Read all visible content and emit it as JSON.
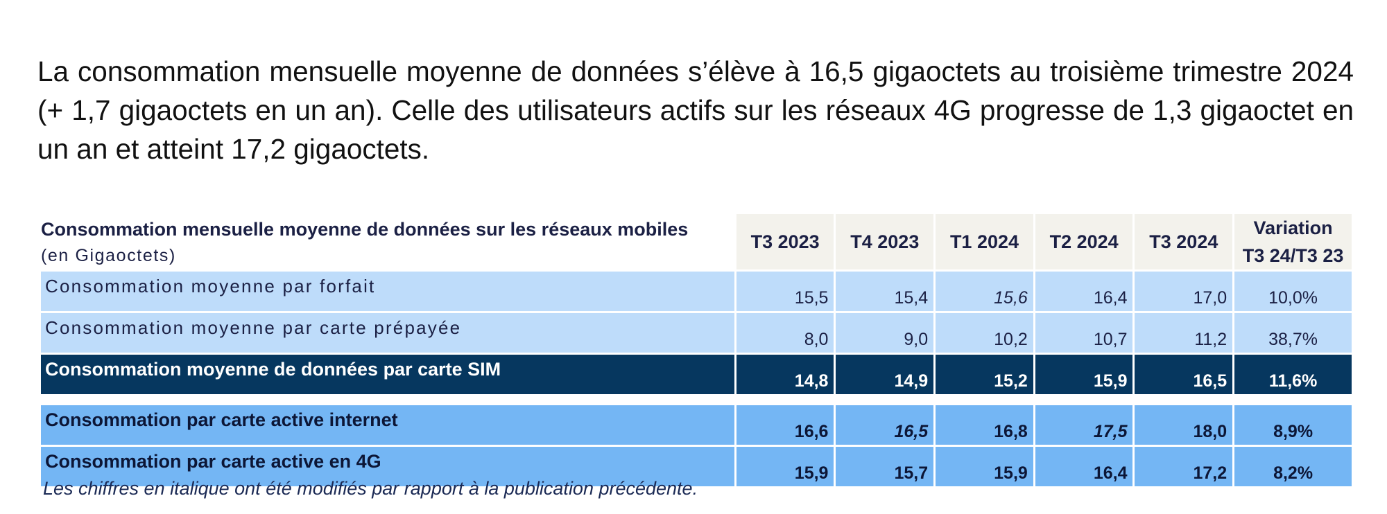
{
  "intro": {
    "paragraph": "La consommation mensuelle moyenne de données s’élève à 16,5 gigaoctets au troisième trimestre 2024 (+ 1,7 gigaoctets en un an). Celle des utilisateurs actifs sur les réseaux 4G progresse de 1,3 gigaoctet en un an et atteint 17,2 gigaoctets."
  },
  "table": {
    "title": "Consommation mensuelle moyenne de données sur les réseaux mobiles",
    "unit": "(en Gigaoctets)",
    "columns": [
      "T3 2023",
      "T4 2023",
      "T1 2024",
      "T2 2024",
      "T3 2024"
    ],
    "variation_header": {
      "line1": "Variation",
      "line2": "T3 24/T3 23"
    },
    "rows": [
      {
        "label": "Consommation moyenne par forfait",
        "values": [
          "15,5",
          "15,4",
          "15,6",
          "16,4",
          "17,0"
        ],
        "variation": "10,0%"
      },
      {
        "label": "Consommation moyenne par carte prépayée",
        "values": [
          "8,0",
          "9,0",
          "10,2",
          "10,7",
          "11,2"
        ],
        "variation": "38,7%"
      },
      {
        "label": "Consommation moyenne de données par carte SIM",
        "values": [
          "14,8",
          "14,9",
          "15,2",
          "15,9",
          "16,5"
        ],
        "variation": "11,6%"
      },
      {
        "label": "Consommation par carte active internet",
        "values": [
          "16,6",
          "16,5",
          "16,8",
          "17,5",
          "18,0"
        ],
        "variation": "8,9%"
      },
      {
        "label": "Consommation par carte active en 4G",
        "values": [
          "15,9",
          "15,7",
          "15,9",
          "16,4",
          "17,2"
        ],
        "variation": "8,2%"
      }
    ]
  },
  "footnote": "Les chiffres en italique ont été modifiés par rapport à la publication précédente.",
  "colors": {
    "header_bg": "#f3f2ec",
    "light_row": "#bedcfa",
    "dark_row": "#06375f",
    "mid_row": "#74b6f4",
    "text_dark": "#1b2044"
  }
}
